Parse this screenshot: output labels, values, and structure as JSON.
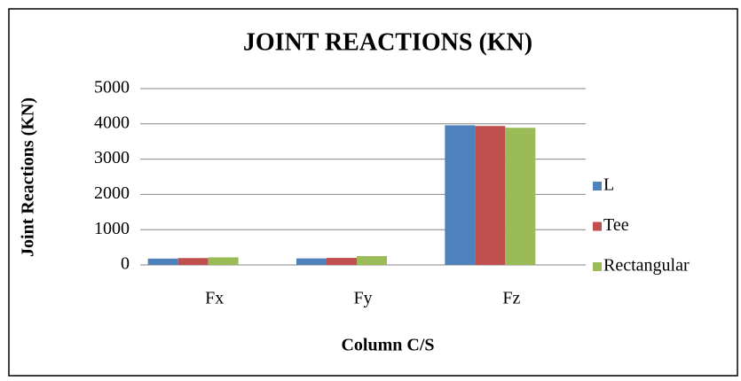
{
  "chart_data": {
    "type": "bar",
    "title": "JOINT REACTIONS (KN)",
    "x_label": "Column C/S",
    "y_label": "Joint Reactions (KN)",
    "categories": [
      "Fx",
      "Fy",
      "Fz"
    ],
    "series": [
      {
        "name": "L",
        "color": "#4f81bd",
        "values": [
          180,
          185,
          3960
        ]
      },
      {
        "name": "Tee",
        "color": "#c0504d",
        "values": [
          195,
          200,
          3940
        ]
      },
      {
        "name": "Rectangular",
        "color": "#9bbb59",
        "values": [
          215,
          250,
          3890
        ]
      }
    ],
    "ylim": [
      0,
      5000
    ],
    "yticks": [
      0,
      1000,
      2000,
      3000,
      4000,
      5000
    ],
    "grid": true,
    "legend": "right"
  }
}
